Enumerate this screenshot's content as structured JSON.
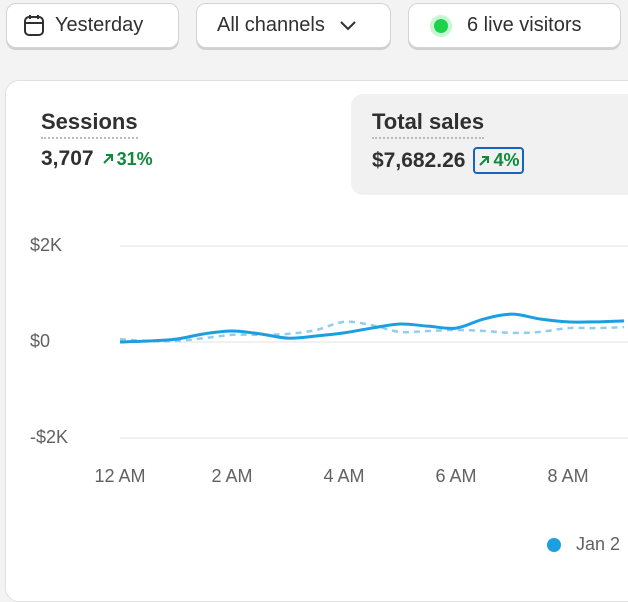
{
  "toolbar": {
    "date": "Yesterday",
    "channels": "All channels",
    "live": "6 live visitors"
  },
  "metrics": [
    {
      "label": "Sessions",
      "value": "3,707",
      "change": "31%"
    },
    {
      "label": "Total sales",
      "value": "$7,682.26",
      "change": "4%"
    }
  ],
  "chart_data": {
    "type": "line",
    "x": [
      0,
      0.5,
      1,
      1.5,
      2,
      2.5,
      3,
      3.5,
      4,
      4.5,
      5,
      5.5,
      6,
      6.5,
      7,
      7.5,
      8,
      8.5,
      9
    ],
    "series": [
      {
        "name": "Jan 2",
        "color": "#1b9fe0",
        "values": [
          0,
          20,
          60,
          170,
          230,
          170,
          80,
          125,
          190,
          290,
          375,
          330,
          290,
          480,
          580,
          480,
          420,
          420,
          440
        ]
      },
      {
        "color": "#90cdee",
        "dashed": true,
        "values": [
          60,
          20,
          20,
          80,
          150,
          150,
          170,
          250,
          420,
          350,
          210,
          230,
          250,
          230,
          190,
          210,
          290,
          290,
          310
        ]
      }
    ],
    "xlim": [
      0,
      9.07
    ],
    "xticks": [
      {
        "value": 0,
        "label": "12 AM"
      },
      {
        "value": 2,
        "label": "2 AM"
      },
      {
        "value": 4,
        "label": "4 AM"
      },
      {
        "value": 6,
        "label": "6 AM"
      },
      {
        "value": 8,
        "label": "8 AM"
      }
    ],
    "ylim": [
      -2000,
      2000
    ],
    "yticks": [
      {
        "value": -2000,
        "label": "-$2K"
      },
      {
        "value": 0,
        "label": "$0"
      },
      {
        "value": 2000,
        "label": "$2K"
      }
    ],
    "grid": true
  }
}
